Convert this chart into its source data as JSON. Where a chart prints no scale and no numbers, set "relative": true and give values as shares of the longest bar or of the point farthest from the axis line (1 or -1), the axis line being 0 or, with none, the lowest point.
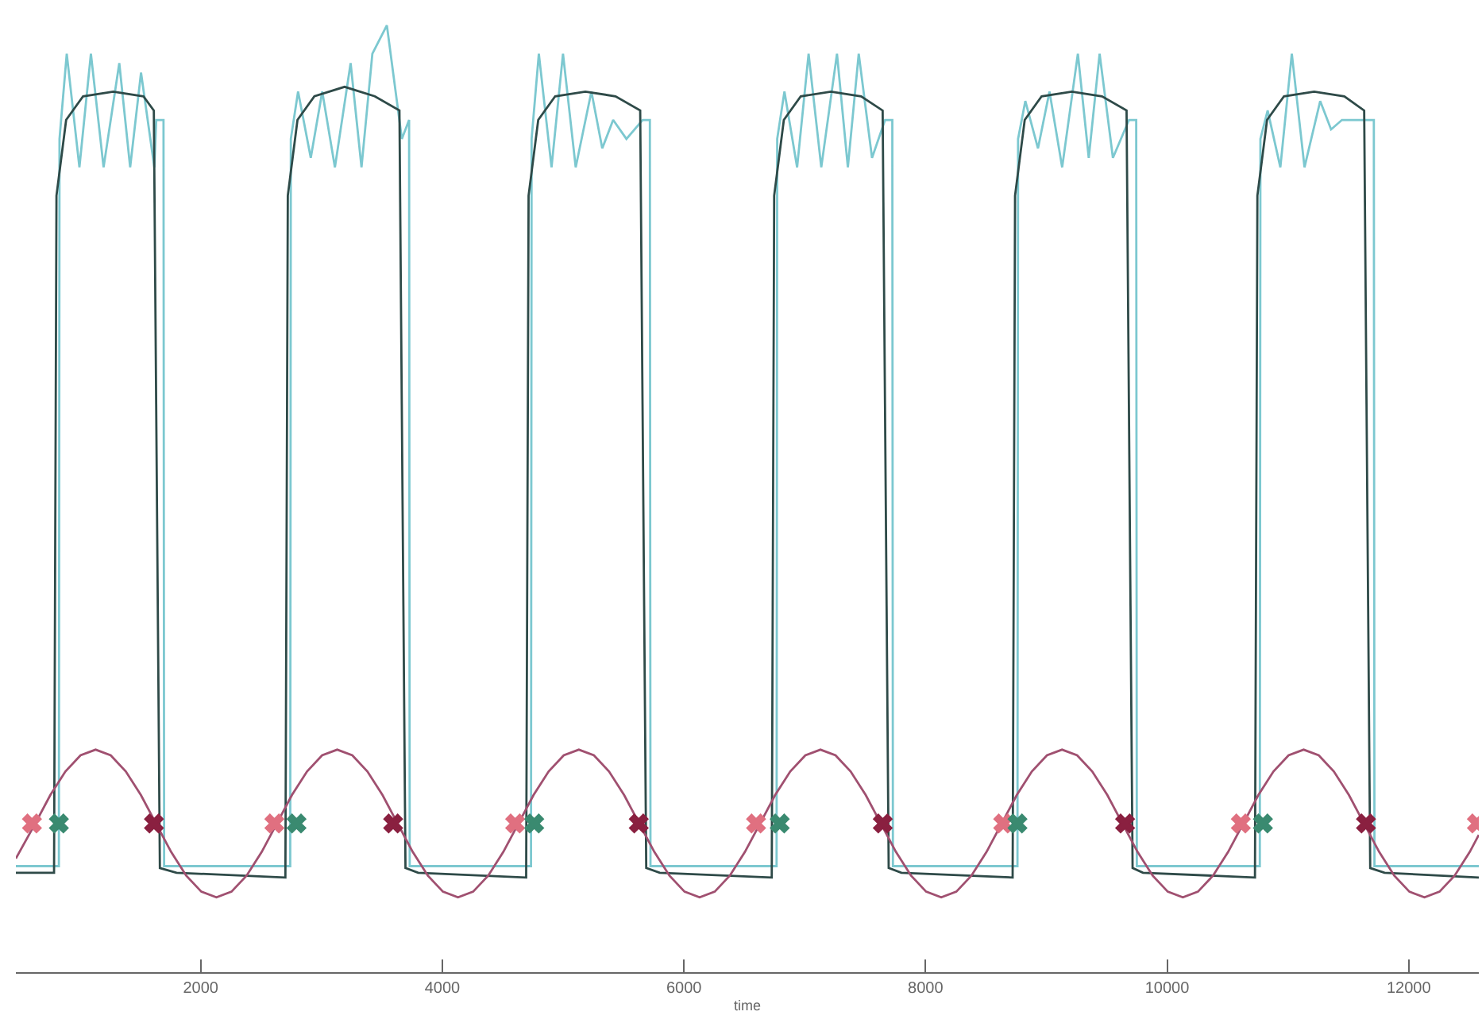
{
  "chart_data": {
    "type": "line",
    "xlabel": "time",
    "relative": true,
    "xlim": [
      470,
      12580
    ],
    "xticks": [
      2000,
      4000,
      6000,
      8000,
      10000,
      12000
    ],
    "grid": false,
    "series": [
      {
        "color": "#7cc8d0",
        "x": [
          470,
          826,
          831,
          891,
          996,
          1091,
          1196,
          1326,
          1416,
          1506,
          1616,
          1632,
          1692,
          1697,
          2741,
          2746,
          2806,
          2911,
          3006,
          3111,
          3241,
          3331,
          3421,
          3541,
          3665,
          3725,
          3730,
          4734,
          4739,
          4799,
          4904,
          4999,
          5104,
          5234,
          5324,
          5414,
          5524,
          5658,
          5718,
          5723,
          6767,
          6772,
          6832,
          6937,
          7032,
          7137,
          7267,
          7357,
          7447,
          7557,
          7665,
          7725,
          7730,
          8761,
          8766,
          8826,
          8931,
          9026,
          9131,
          9261,
          9351,
          9441,
          9551,
          9684,
          9744,
          9749,
          10767,
          10772,
          10832,
          10937,
          11032,
          11137,
          11267,
          11357,
          11447,
          11557,
          11651,
          11711,
          11716,
          12580
        ],
        "values": [
          0.112,
          0.112,
          0.88,
          0.97,
          0.85,
          0.97,
          0.85,
          0.96,
          0.85,
          0.95,
          0.85,
          0.9,
          0.9,
          0.112,
          0.112,
          0.88,
          0.93,
          0.86,
          0.93,
          0.85,
          0.96,
          0.85,
          0.97,
          1.0,
          0.88,
          0.9,
          0.112,
          0.112,
          0.88,
          0.97,
          0.85,
          0.97,
          0.85,
          0.93,
          0.87,
          0.9,
          0.88,
          0.9,
          0.9,
          0.112,
          0.112,
          0.88,
          0.93,
          0.85,
          0.97,
          0.85,
          0.97,
          0.85,
          0.97,
          0.86,
          0.9,
          0.9,
          0.112,
          0.112,
          0.88,
          0.92,
          0.87,
          0.93,
          0.85,
          0.97,
          0.86,
          0.97,
          0.86,
          0.9,
          0.9,
          0.112,
          0.112,
          0.88,
          0.91,
          0.85,
          0.97,
          0.85,
          0.92,
          0.89,
          0.9,
          0.9,
          0.9,
          0.9,
          0.112,
          0.112
        ]
      },
      {
        "color": "#2e4a48",
        "x": [
          470,
          786,
          806,
          886,
          1026,
          1276,
          1526,
          1612,
          1662,
          1800,
          2701,
          2721,
          2801,
          2941,
          3191,
          3441,
          3645,
          3695,
          3800,
          4694,
          4714,
          4794,
          4934,
          5184,
          5434,
          5638,
          5688,
          5800,
          6727,
          6747,
          6827,
          6967,
          7217,
          7467,
          7645,
          7695,
          7800,
          8721,
          8741,
          8821,
          8961,
          9211,
          9461,
          9664,
          9714,
          9800,
          10727,
          10747,
          10827,
          10967,
          11217,
          11467,
          11631,
          11681,
          11800,
          12580
        ],
        "values": [
          0.105,
          0.105,
          0.82,
          0.9,
          0.925,
          0.93,
          0.925,
          0.91,
          0.11,
          0.105,
          0.1,
          0.82,
          0.9,
          0.925,
          0.935,
          0.925,
          0.91,
          0.11,
          0.105,
          0.1,
          0.82,
          0.9,
          0.925,
          0.93,
          0.925,
          0.91,
          0.11,
          0.105,
          0.1,
          0.82,
          0.9,
          0.925,
          0.93,
          0.925,
          0.91,
          0.11,
          0.105,
          0.1,
          0.82,
          0.9,
          0.925,
          0.93,
          0.925,
          0.91,
          0.11,
          0.105,
          0.1,
          0.82,
          0.9,
          0.925,
          0.93,
          0.925,
          0.91,
          0.11,
          0.105,
          0.1
        ]
      },
      {
        "color": "#a05070",
        "x": [
          470,
          630,
          755,
          880,
          1005,
          1130,
          1255,
          1380,
          1505,
          1630,
          1755,
          1880,
          2005,
          2130,
          2255,
          2380,
          2505,
          2630,
          2755,
          2880,
          3005,
          3130,
          3255,
          3380,
          3505,
          3630,
          3755,
          3880,
          4005,
          4130,
          4255,
          4380,
          4505,
          4630,
          4755,
          4880,
          5005,
          5130,
          5255,
          5380,
          5505,
          5630,
          5755,
          5880,
          6005,
          6130,
          6255,
          6380,
          6505,
          6630,
          6755,
          6880,
          7005,
          7130,
          7255,
          7380,
          7505,
          7630,
          7755,
          7880,
          8005,
          8130,
          8255,
          8380,
          8505,
          8630,
          8755,
          8880,
          9005,
          9130,
          9255,
          9380,
          9505,
          9630,
          9755,
          9880,
          10005,
          10130,
          10255,
          10380,
          10505,
          10630,
          10755,
          10880,
          11005,
          11130,
          11255,
          11380,
          11505,
          11630,
          11755,
          11880,
          12005,
          12130,
          12255,
          12380,
          12505,
          12580
        ],
        "values": [
          0.12,
          0.157,
          0.187,
          0.212,
          0.229,
          0.235,
          0.229,
          0.212,
          0.187,
          0.157,
          0.127,
          0.102,
          0.085,
          0.079,
          0.085,
          0.102,
          0.127,
          0.157,
          0.187,
          0.212,
          0.229,
          0.235,
          0.229,
          0.212,
          0.187,
          0.157,
          0.127,
          0.102,
          0.085,
          0.079,
          0.085,
          0.102,
          0.127,
          0.157,
          0.187,
          0.212,
          0.229,
          0.235,
          0.229,
          0.212,
          0.187,
          0.157,
          0.127,
          0.102,
          0.085,
          0.079,
          0.085,
          0.102,
          0.127,
          0.157,
          0.187,
          0.212,
          0.229,
          0.235,
          0.229,
          0.212,
          0.187,
          0.157,
          0.127,
          0.102,
          0.085,
          0.079,
          0.085,
          0.102,
          0.127,
          0.157,
          0.187,
          0.212,
          0.229,
          0.235,
          0.229,
          0.212,
          0.187,
          0.157,
          0.127,
          0.102,
          0.085,
          0.079,
          0.085,
          0.102,
          0.127,
          0.157,
          0.187,
          0.212,
          0.229,
          0.235,
          0.229,
          0.212,
          0.187,
          0.157,
          0.127,
          0.102,
          0.085,
          0.079,
          0.085,
          0.102,
          0.127,
          0.145
        ]
      },
      {
        "type": "scatter",
        "marker": "cross",
        "color": "#e07080",
        "x": [
          603,
          2610,
          4603,
          6597,
          8643,
          10610,
          12564
        ],
        "values": [
          0.157,
          0.157,
          0.157,
          0.157,
          0.157,
          0.157,
          0.157
        ]
      },
      {
        "type": "scatter",
        "marker": "cross",
        "color": "#3a8a70",
        "x": [
          826,
          2793,
          4761,
          6793,
          8761,
          10793
        ],
        "values": [
          0.157,
          0.157,
          0.157,
          0.157,
          0.157,
          0.157
        ]
      },
      {
        "type": "scatter",
        "marker": "cross",
        "color": "#8a2040",
        "x": [
          1613,
          3593,
          5626,
          7646,
          9652,
          11646
        ],
        "values": [
          0.157,
          0.157,
          0.157,
          0.157,
          0.157,
          0.157
        ]
      }
    ]
  }
}
